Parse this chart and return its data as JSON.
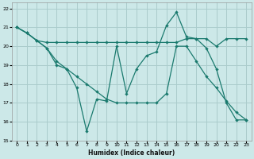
{
  "xlabel": "Humidex (Indice chaleur)",
  "background_color": "#cce8e8",
  "grid_color": "#aacccc",
  "line_color": "#1a7a6e",
  "xlim_min": -0.5,
  "xlim_max": 23.5,
  "ylim_min": 15,
  "ylim_max": 22.3,
  "xticks": [
    0,
    1,
    2,
    3,
    4,
    5,
    6,
    7,
    8,
    9,
    10,
    11,
    12,
    13,
    14,
    15,
    16,
    17,
    18,
    19,
    20,
    21,
    22,
    23
  ],
  "yticks": [
    15,
    16,
    17,
    18,
    19,
    20,
    21,
    22
  ],
  "line1_x": [
    0,
    1,
    2,
    3,
    4,
    5,
    6,
    7,
    8,
    9,
    10,
    11,
    12,
    13,
    14,
    15,
    16,
    17,
    18,
    19,
    20,
    21,
    22,
    23
  ],
  "line1_y": [
    21,
    20.7,
    20.3,
    19.9,
    19.0,
    18.8,
    17.8,
    15.5,
    17.2,
    17.1,
    20.0,
    17.5,
    18.8,
    19.5,
    19.7,
    21.1,
    21.8,
    20.5,
    20.4,
    19.9,
    18.8,
    17.0,
    16.1,
    16.1
  ],
  "line2_x": [
    0,
    1,
    2,
    3,
    4,
    5,
    6,
    7,
    8,
    9,
    10,
    11,
    12,
    13,
    14,
    15,
    16,
    17,
    18,
    19,
    20,
    21,
    22,
    23
  ],
  "line2_y": [
    21,
    20.7,
    20.3,
    20.2,
    20.2,
    20.2,
    20.2,
    20.2,
    20.2,
    20.2,
    20.2,
    20.2,
    20.2,
    20.2,
    20.2,
    20.2,
    20.2,
    20.4,
    20.4,
    20.4,
    20.0,
    20.4,
    20.4,
    20.4
  ],
  "line3_x": [
    0,
    1,
    2,
    3,
    4,
    5,
    6,
    7,
    8,
    9,
    10,
    11,
    12,
    13,
    14,
    15,
    16,
    17,
    18,
    19,
    20,
    21,
    22,
    23
  ],
  "line3_y": [
    21,
    20.7,
    20.3,
    19.9,
    19.2,
    18.8,
    18.4,
    18.0,
    17.6,
    17.2,
    17.0,
    17.0,
    17.0,
    17.0,
    17.0,
    17.5,
    20.0,
    20.0,
    19.2,
    18.4,
    17.8,
    17.1,
    16.5,
    16.1
  ]
}
